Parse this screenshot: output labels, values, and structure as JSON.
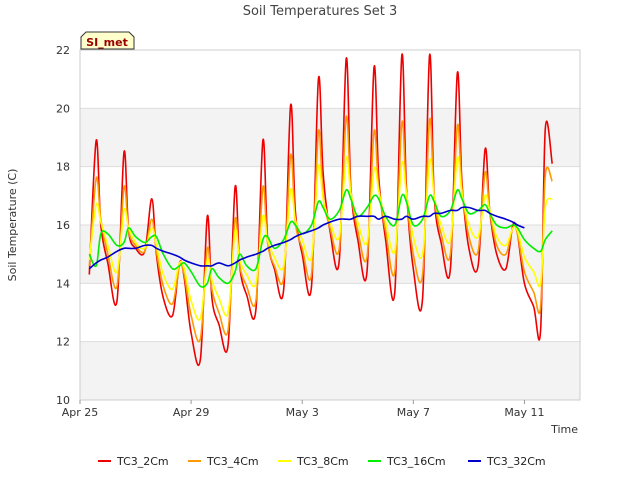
{
  "chart_data": {
    "type": "line",
    "title": "Soil Temperatures Set 3",
    "xlabel": "Time",
    "ylabel": "Soil Temperature (C)",
    "badge": "SI_met",
    "ylim": [
      10,
      22
    ],
    "yticks": [
      10,
      12,
      14,
      16,
      18,
      20,
      22
    ],
    "xlim": [
      "2023-04-25",
      "2023-05-13"
    ],
    "xticks": [
      {
        "date": "2023-04-25",
        "label": "Apr 25"
      },
      {
        "date": "2023-04-29",
        "label": "Apr 29"
      },
      {
        "date": "2023-05-03",
        "label": "May 3"
      },
      {
        "date": "2023-05-07",
        "label": "May 7"
      },
      {
        "date": "2023-05-11",
        "label": "May 11"
      }
    ],
    "grid": true,
    "legend_position": "bottom",
    "x": [
      "2023-04-25 08:00",
      "2023-04-25 14:00",
      "2023-04-25 18:00",
      "2023-04-26 00:00",
      "2023-04-26 08:00",
      "2023-04-26 14:00",
      "2023-04-26 18:00",
      "2023-04-27 00:00",
      "2023-04-27 08:00",
      "2023-04-27 14:00",
      "2023-04-27 18:00",
      "2023-04-28 00:00",
      "2023-04-28 08:00",
      "2023-04-28 14:00",
      "2023-04-28 18:00",
      "2023-04-29 00:00",
      "2023-04-29 08:00",
      "2023-04-29 14:00",
      "2023-04-29 18:00",
      "2023-04-30 00:00",
      "2023-04-30 08:00",
      "2023-04-30 14:00",
      "2023-04-30 18:00",
      "2023-05-01 00:00",
      "2023-05-01 08:00",
      "2023-05-01 14:00",
      "2023-05-01 18:00",
      "2023-05-02 00:00",
      "2023-05-02 08:00",
      "2023-05-02 14:00",
      "2023-05-02 18:00",
      "2023-05-03 00:00",
      "2023-05-03 08:00",
      "2023-05-03 14:00",
      "2023-05-03 18:00",
      "2023-05-04 00:00",
      "2023-05-04 08:00",
      "2023-05-04 14:00",
      "2023-05-04 18:00",
      "2023-05-05 00:00",
      "2023-05-05 08:00",
      "2023-05-05 14:00",
      "2023-05-05 18:00",
      "2023-05-06 00:00",
      "2023-05-06 08:00",
      "2023-05-06 14:00",
      "2023-05-06 18:00",
      "2023-05-07 00:00",
      "2023-05-07 08:00",
      "2023-05-07 14:00",
      "2023-05-07 18:00",
      "2023-05-08 00:00",
      "2023-05-08 08:00",
      "2023-05-08 14:00",
      "2023-05-08 18:00",
      "2023-05-09 00:00",
      "2023-05-09 08:00",
      "2023-05-09 14:00",
      "2023-05-09 18:00",
      "2023-05-10 00:00",
      "2023-05-10 08:00",
      "2023-05-10 14:00",
      "2023-05-10 18:00",
      "2023-05-11 00:00",
      "2023-05-11 08:00",
      "2023-05-11 14:00",
      "2023-05-11 18:00",
      "2023-05-12 00:00",
      "2023-05-12 08:00",
      "2023-05-12 14:00",
      "2023-05-12 18:00"
    ],
    "series": [
      {
        "name": "TC3_2Cm",
        "color": "#ee0000",
        "values": [
          14.3,
          18.9,
          16.0,
          14.7,
          13.4,
          18.5,
          15.8,
          15.2,
          15.1,
          16.9,
          15.0,
          13.5,
          12.9,
          14.7,
          14.2,
          12.3,
          11.4,
          16.3,
          13.5,
          12.6,
          11.9,
          17.3,
          14.6,
          13.6,
          13.1,
          18.9,
          15.6,
          14.5,
          13.8,
          20.1,
          16.5,
          15.0,
          13.9,
          21.0,
          17.8,
          15.8,
          14.8,
          21.7,
          17.3,
          15.5,
          14.4,
          21.4,
          17.7,
          15.5,
          13.7,
          21.8,
          17.3,
          14.5,
          13.5,
          21.8,
          17.0,
          15.4,
          14.5,
          21.2,
          17.5,
          15.2,
          14.6,
          18.6,
          16.5,
          15.0,
          14.5,
          16.0,
          15.7,
          14.0,
          13.2,
          12.4,
          19.3,
          18.1,
          null,
          null,
          null
        ]
      },
      {
        "name": "TC3_4Cm",
        "color": "#ff9900",
        "values": [
          14.6,
          17.6,
          16.2,
          15.0,
          13.9,
          17.3,
          15.8,
          15.3,
          15.1,
          16.2,
          15.1,
          13.9,
          13.3,
          14.6,
          14.3,
          12.9,
          12.1,
          15.2,
          13.8,
          13.0,
          12.4,
          16.2,
          14.6,
          13.9,
          13.4,
          17.3,
          15.4,
          14.6,
          14.2,
          18.4,
          16.1,
          15.2,
          14.3,
          19.2,
          17.0,
          15.9,
          15.2,
          19.7,
          17.2,
          15.8,
          14.9,
          19.2,
          17.3,
          15.8,
          14.4,
          19.5,
          17.1,
          15.0,
          14.3,
          19.6,
          17.0,
          15.7,
          15.0,
          19.4,
          17.3,
          15.6,
          15.1,
          17.8,
          16.5,
          15.3,
          15.0,
          15.9,
          15.7,
          14.4,
          13.7,
          13.2,
          17.7,
          17.5,
          null,
          null,
          null
        ]
      },
      {
        "name": "TC3_8Cm",
        "color": "#ffff00",
        "values": [
          14.8,
          16.7,
          16.1,
          15.3,
          14.4,
          16.5,
          15.9,
          15.4,
          15.2,
          15.9,
          15.3,
          14.3,
          13.8,
          14.7,
          14.5,
          13.4,
          12.8,
          14.8,
          14.1,
          13.5,
          13.0,
          15.8,
          14.8,
          14.3,
          14.0,
          16.3,
          15.5,
          14.9,
          14.6,
          17.2,
          16.2,
          15.5,
          14.9,
          18.0,
          16.9,
          16.1,
          15.6,
          18.3,
          17.1,
          16.1,
          15.4,
          17.9,
          17.2,
          16.1,
          15.1,
          18.1,
          17.1,
          15.6,
          15.0,
          18.2,
          17.0,
          16.0,
          15.5,
          18.3,
          17.1,
          16.0,
          15.6,
          17.0,
          16.5,
          15.6,
          15.3,
          15.9,
          15.8,
          14.9,
          14.4,
          14.0,
          16.6,
          16.9,
          null,
          null,
          null
        ]
      },
      {
        "name": "TC3_16Cm",
        "color": "#00ee00",
        "values": [
          15.0,
          14.6,
          15.7,
          15.7,
          15.3,
          15.4,
          15.9,
          15.6,
          15.4,
          15.6,
          15.6,
          15.0,
          14.5,
          14.6,
          14.7,
          14.4,
          13.9,
          14.0,
          14.5,
          14.2,
          14.0,
          14.4,
          15.0,
          14.6,
          14.5,
          15.5,
          15.6,
          15.2,
          15.5,
          16.1,
          16.0,
          15.7,
          16.0,
          16.8,
          16.6,
          16.2,
          16.5,
          17.2,
          16.9,
          16.3,
          16.6,
          17.0,
          16.9,
          16.3,
          16.0,
          17.0,
          16.8,
          16.0,
          16.2,
          17.0,
          16.8,
          16.3,
          16.5,
          17.2,
          16.9,
          16.4,
          16.5,
          16.7,
          16.4,
          16.0,
          15.9,
          16.0,
          15.9,
          15.5,
          15.2,
          15.1,
          15.5,
          15.8,
          null,
          null,
          null
        ]
      },
      {
        "name": "TC3_32Cm",
        "color": "#0000cc",
        "values": [
          14.5,
          14.7,
          14.8,
          14.9,
          15.1,
          15.2,
          15.2,
          15.2,
          15.3,
          15.3,
          15.2,
          15.1,
          15.0,
          14.9,
          14.8,
          14.7,
          14.6,
          14.6,
          14.6,
          14.7,
          14.6,
          14.7,
          14.8,
          14.9,
          15.0,
          15.1,
          15.2,
          15.3,
          15.4,
          15.5,
          15.6,
          15.7,
          15.8,
          15.9,
          16.0,
          16.1,
          16.2,
          16.2,
          16.2,
          16.3,
          16.3,
          16.3,
          16.2,
          16.3,
          16.2,
          16.2,
          16.3,
          16.2,
          16.3,
          16.3,
          16.4,
          16.4,
          16.5,
          16.5,
          16.6,
          16.6,
          16.5,
          16.5,
          16.4,
          16.3,
          16.2,
          16.1,
          16.0,
          15.9,
          null,
          null,
          null,
          null,
          null,
          null,
          null
        ]
      }
    ]
  }
}
